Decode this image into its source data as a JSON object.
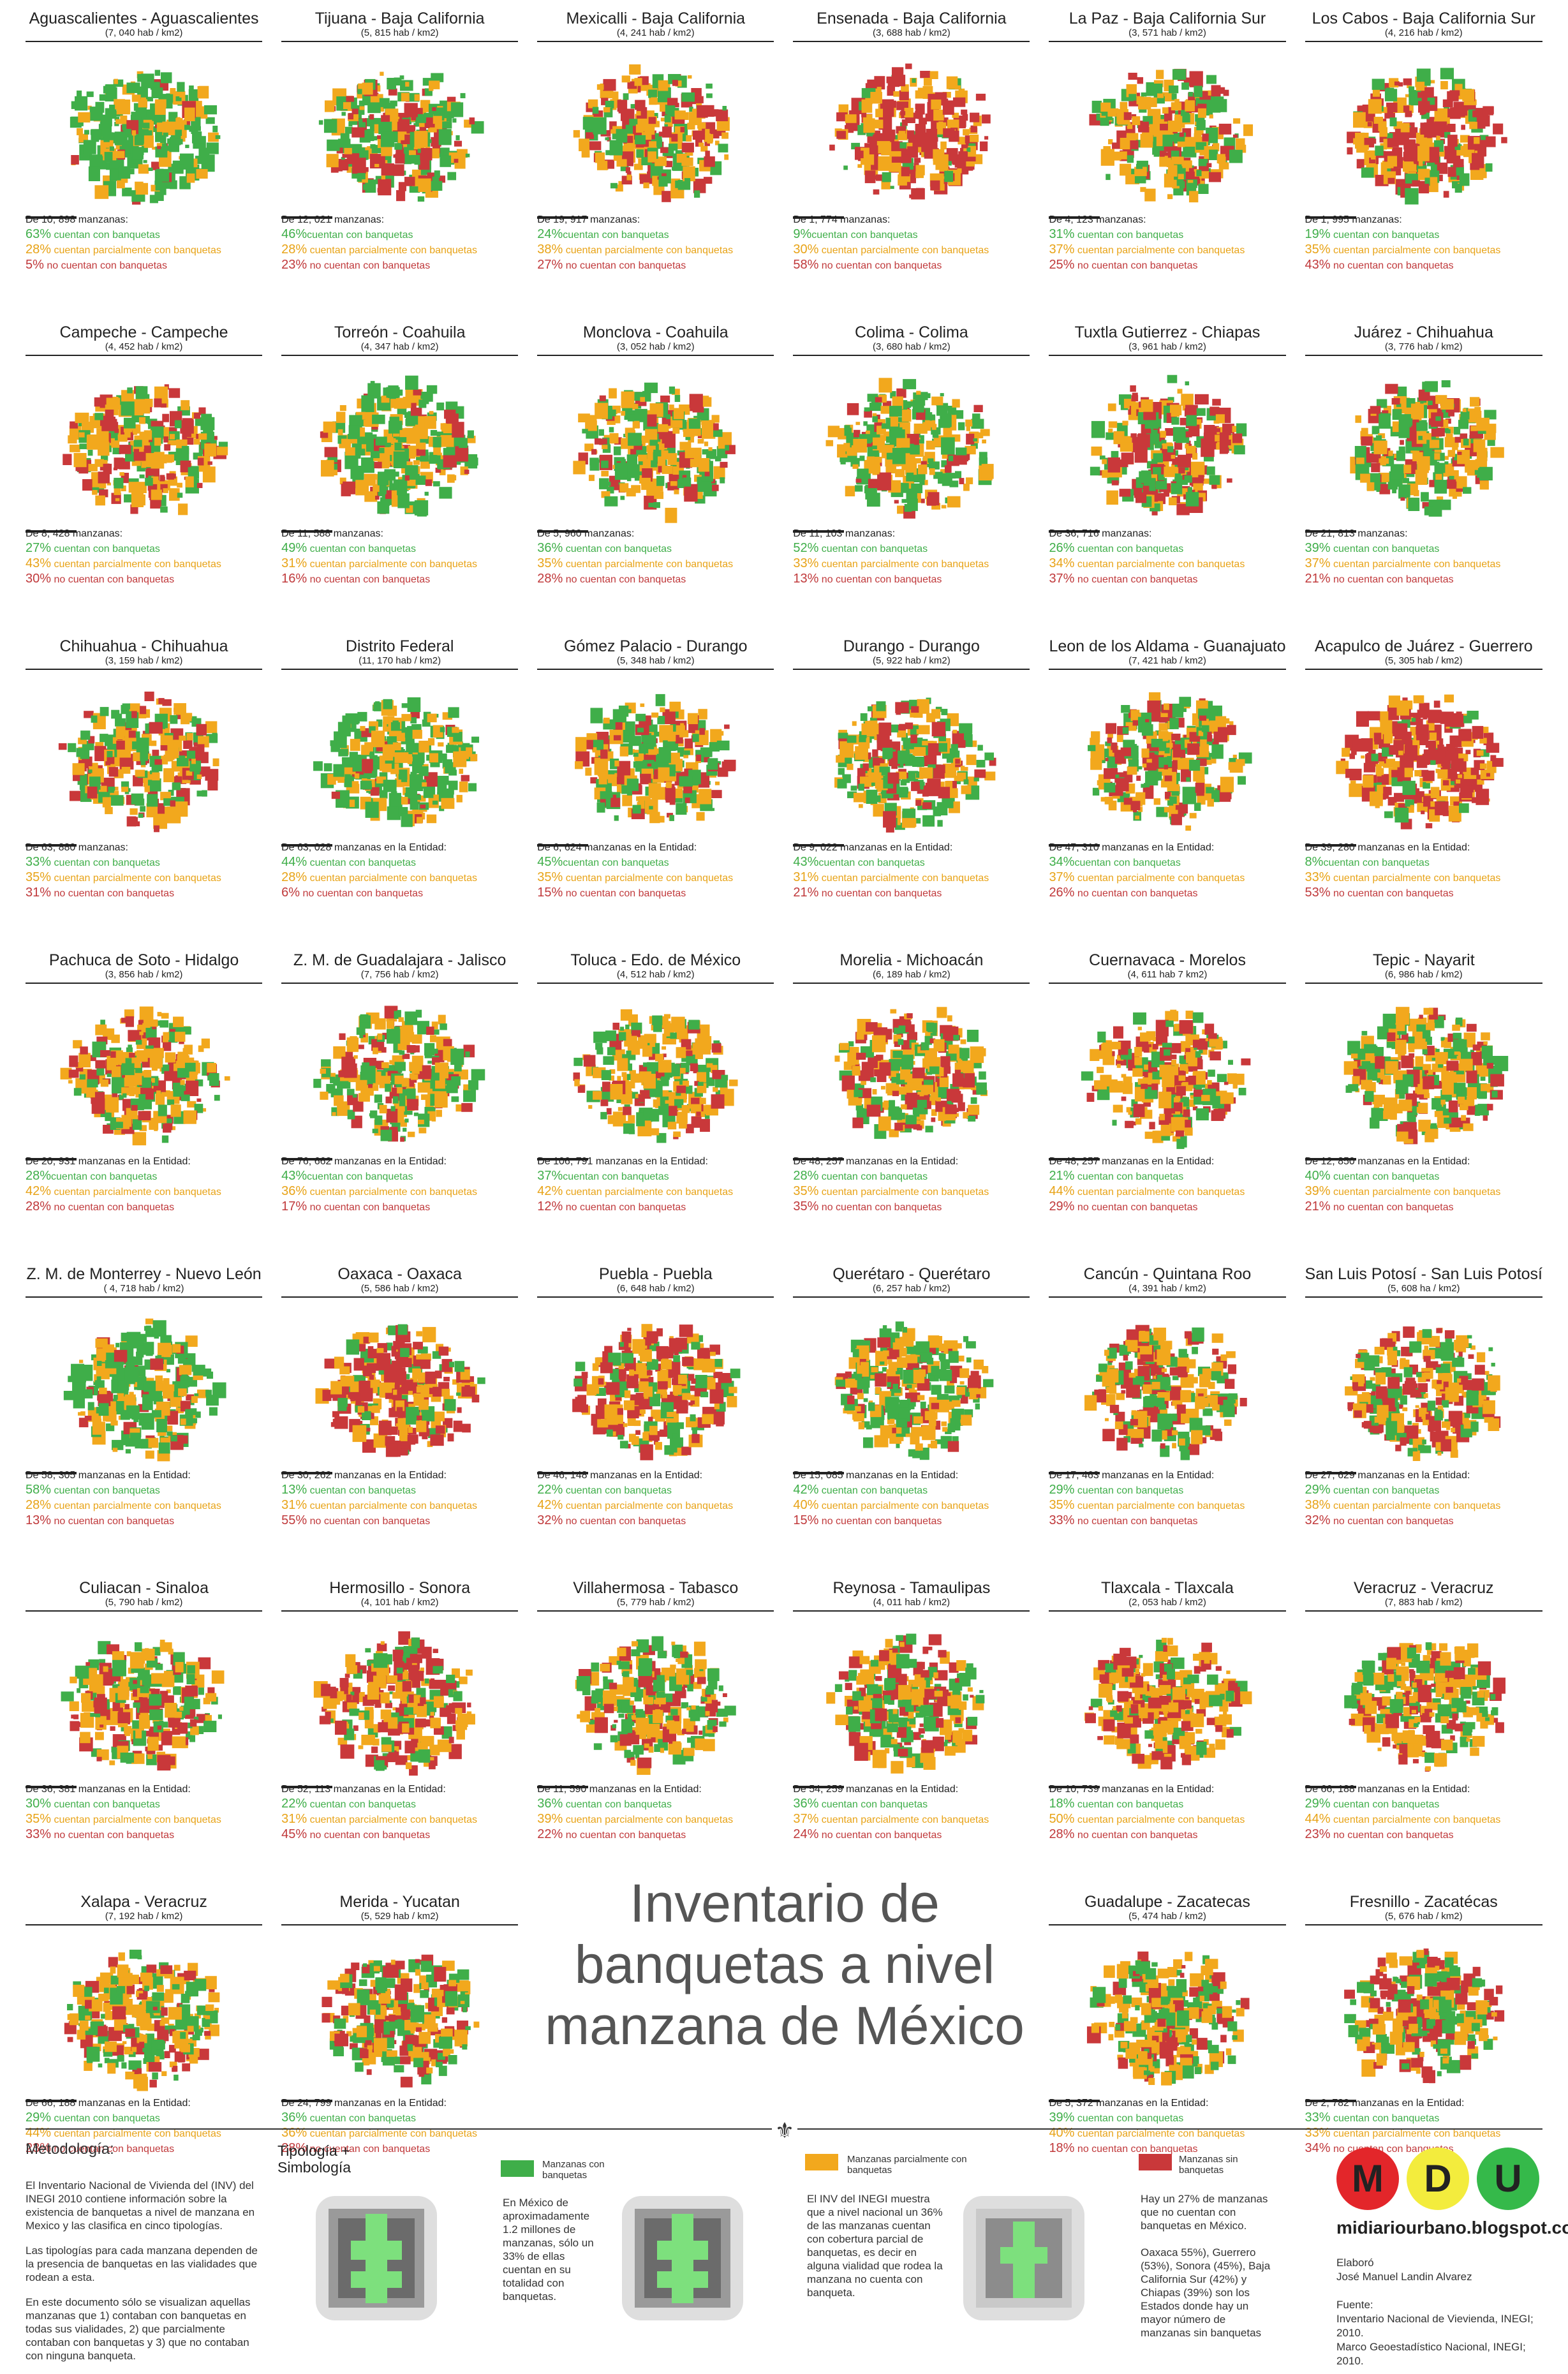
{
  "title": "Inventario de banquetas a nivel manzana de México",
  "colors": {
    "green": "#3fae49",
    "orange": "#f2a81d",
    "red": "#c9383a"
  },
  "cities": [
    {
      "name": "Aguascalientes - Aguascalientes",
      "density": "(7, 040 hab / km2)",
      "total": "De 10, 898 manzanas:",
      "g": "63%",
      "gl": " cuentan con banquetas",
      "o": "28%",
      "ol": " cuentan parcialmente con banquetas",
      "r": "5%",
      "rl": " no cuentan con banquetas"
    },
    {
      "name": "Tijuana - Baja California",
      "density": "(5, 815 hab / km2)",
      "total": "De 12, 021 manzanas:",
      "g": "46%",
      "gl": "cuentan con banquetas",
      "o": "28%",
      "ol": " cuentan parcialmente con banquetas",
      "r": "23%",
      "rl": " no cuentan con banquetas"
    },
    {
      "name": "Mexicalli - Baja California",
      "density": "(4, 241 hab / km2)",
      "total": "De 19, 917 manzanas:",
      "g": "24%",
      "gl": "cuentan con banquetas",
      "o": "38%",
      "ol": " cuentan parcialmente con banquetas",
      "r": "27%",
      "rl": " no cuentan con banquetas"
    },
    {
      "name": "Ensenada - Baja California",
      "density": "(3, 688 hab / km2)",
      "total": "De 1, 774 manzanas:",
      "g": "9%",
      "gl": "cuentan con banquetas",
      "o": "30%",
      "ol": " cuentan parcialmente con banquetas",
      "r": "58%",
      "rl": " no cuentan con banquetas"
    },
    {
      "name": "La Paz - Baja California Sur",
      "density": "(3, 571 hab / km2)",
      "total": "De 4, 123 manzanas:",
      "g": "31%",
      "gl": " cuentan con banquetas",
      "o": "37%",
      "ol": " cuentan parcialmente con banquetas",
      "r": "25%",
      "rl": " no cuentan con banquetas"
    },
    {
      "name": "Los Cabos -  Baja California Sur",
      "density": "(4, 216 hab / km2)",
      "total": "De 1, 995 manzanas:",
      "g": "19%",
      "gl": " cuentan con banquetas",
      "o": "35%",
      "ol": " cuentan parcialmente con banquetas",
      "r": "43%",
      "rl": " no cuentan con banquetas"
    },
    {
      "name": "Campeche - Campeche",
      "density": "(4, 452 hab / km2)",
      "total": "De 8, 428 manzanas:",
      "g": "27%",
      "gl": " cuentan con banquetas",
      "o": "43%",
      "ol": " cuentan parcialmente con banquetas",
      "r": "30%",
      "rl": " no cuentan con banquetas"
    },
    {
      "name": "Torreón - Coahuila",
      "density": "(4, 347 hab / km2)",
      "total": "De 11, 588 manzanas:",
      "g": "49%",
      "gl": " cuentan con banquetas",
      "o": "31%",
      "ol": " cuentan parcialmente con banquetas",
      "r": "16%",
      "rl": " no cuentan con banquetas"
    },
    {
      "name": "Monclova - Coahuila",
      "density": "(3, 052 hab / km2)",
      "total": "De 5, 960 manzanas:",
      "g": "36%",
      "gl": " cuentan con banquetas",
      "o": "35%",
      "ol": " cuentan parcialmente con banquetas",
      "r": "28%",
      "rl": " no cuentan con banquetas"
    },
    {
      "name": "Colima - Colima",
      "density": "(3, 680 hab / km2)",
      "total": "De 11, 103 manzanas:",
      "g": "52%",
      "gl": " cuentan con banquetas",
      "o": "33%",
      "ol": " cuentan parcialmente con banquetas",
      "r": "13%",
      "rl": " no cuentan con banquetas"
    },
    {
      "name": "Tuxtla Gutierrez -  Chiapas",
      "density": "(3, 961 hab / km2)",
      "total": "De 36, 716 manzanas:",
      "g": "26%",
      "gl": " cuentan con banquetas",
      "o": "34%",
      "ol": " cuentan parcialmente con banquetas",
      "r": "37%",
      "rl": " no cuentan con banquetas"
    },
    {
      "name": "Juárez - Chihuahua",
      "density": "(3, 776 hab / km2)",
      "total": "De 21, 813 manzanas:",
      "g": "39%",
      "gl": " cuentan con banquetas",
      "o": "37%",
      "ol": " cuentan parcialmente con banquetas",
      "r": "21%",
      "rl": " no cuentan con banquetas"
    },
    {
      "name": "Chihuahua -  Chihuahua",
      "density": "(3, 159 hab / km2)",
      "total": "De 63, 880 manzanas:",
      "g": "33%",
      "gl": " cuentan con banquetas",
      "o": "35%",
      "ol": " cuentan parcialmente con banquetas",
      "r": "31%",
      "rl": " no cuentan con banquetas"
    },
    {
      "name": "Distrito Federal",
      "density": "(11, 170 hab / km2)",
      "total": "De 63, 028 manzanas en la Entidad:",
      "g": "44%",
      "gl": " cuentan con banquetas",
      "o": "28%",
      "ol": " cuentan parcialmente con banquetas",
      "r": "6%",
      "rl": " no cuentan con banquetas"
    },
    {
      "name": "Gómez Palacio - Durango",
      "density": "(5, 348 hab / km2)",
      "total": "De 6, 624 manzanas en la Entidad:",
      "g": "45%",
      "gl": "cuentan con banquetas",
      "o": "35%",
      "ol": " cuentan parcialmente con banquetas",
      "r": "15%",
      "rl": " no cuentan con banquetas"
    },
    {
      "name": "Durango - Durango",
      "density": "(5, 922 hab / km2)",
      "total": "De 9, 022 manzanas en la Entidad:",
      "g": "43%",
      "gl": "cuentan con banquetas",
      "o": "31%",
      "ol": " cuentan parcialmente con banquetas",
      "r": "21%",
      "rl": " no cuentan con banquetas"
    },
    {
      "name": "Leon de los Aldama -  Guanajuato",
      "density": "(7, 421 hab / km2)",
      "total": "De 47, 310 manzanas en la Entidad:",
      "g": "34%",
      "gl": "cuentan con banquetas",
      "o": "37%",
      "ol": " cuentan parcialmente con banquetas",
      "r": "26%",
      "rl": " no cuentan con banquetas"
    },
    {
      "name": "Acapulco de Juárez -  Guerrero",
      "density": "(5, 305 hab / km2)",
      "total": "De 39, 280 manzanas en la Entidad:",
      "g": "8%",
      "gl": "cuentan con banquetas",
      "o": "33%",
      "ol": " cuentan parcialmente con banquetas",
      "r": "53%",
      "rl": " no cuentan con banquetas"
    },
    {
      "name": "Pachuca de Soto - Hidalgo",
      "density": "(3, 856 hab / km2)",
      "total": "De 20, 931 manzanas en la Entidad:",
      "g": "28%",
      "gl": "cuentan con banquetas",
      "o": "42%",
      "ol": " cuentan parcialmente con banquetas",
      "r": "28%",
      "rl": " no cuentan con banquetas"
    },
    {
      "name": "Z. M. de Guadalajara - Jalisco",
      "density": "(7, 756 hab / km2)",
      "total": "De 76, 662 manzanas en la Entidad:",
      "g": "43%",
      "gl": "cuentan con banquetas",
      "o": "36%",
      "ol": " cuentan parcialmente con banquetas",
      "r": "17%",
      "rl": " no cuentan con banquetas"
    },
    {
      "name": "Toluca - Edo. de México",
      "density": "(4, 512 hab / km2)",
      "total": "De 106, 791 manzanas en la Entidad:",
      "g": "37%",
      "gl": "cuentan con banquetas",
      "o": "42%",
      "ol": " cuentan parcialmente con banquetas",
      "r": "12%",
      "rl": " no cuentan con banquetas"
    },
    {
      "name": "Morelia - Michoacán",
      "density": "(6, 189 hab / km2)",
      "total": "De 48, 257 manzanas en la Entidad:",
      "g": "28%",
      "gl": " cuentan con banquetas",
      "o": "35%",
      "ol": " cuentan parcialmente con banquetas",
      "r": "35%",
      "rl": " no cuentan con banquetas"
    },
    {
      "name": "Cuernavaca -  Morelos",
      "density": "(4, 611 hab 7 km2)",
      "total": "De 48, 257 manzanas en la Entidad:",
      "g": "21%",
      "gl": " cuentan con banquetas",
      "o": "44%",
      "ol": " cuentan parcialmente con banquetas",
      "r": "29%",
      "rl": " no cuentan con banquetas"
    },
    {
      "name": "Tepic -  Nayarit",
      "density": "(6, 986 hab / km2)",
      "total": "De 12, 850 manzanas en la Entidad:",
      "g": "40%",
      "gl": " cuentan con banquetas",
      "o": "39%",
      "ol": " cuentan parcialmente con banquetas",
      "r": "21%",
      "rl": " no cuentan con banquetas"
    },
    {
      "name": "Z. M. de Monterrey -  Nuevo León",
      "density": "( 4, 718 hab / km2)",
      "total": "De 58, 305 manzanas en la Entidad:",
      "g": "58%",
      "gl": " cuentan con banquetas",
      "o": "28%",
      "ol": " cuentan parcialmente con banquetas",
      "r": "13%",
      "rl": " no cuentan con banquetas"
    },
    {
      "name": "Oaxaca - Oaxaca",
      "density": "(5, 586 hab / km2)",
      "total": "De 30, 262 manzanas en la Entidad:",
      "g": "13%",
      "gl": " cuentan con banquetas",
      "o": "31%",
      "ol": " cuentan parcialmente con banquetas",
      "r": "55%",
      "rl": " no cuentan con banquetas"
    },
    {
      "name": "Puebla - Puebla",
      "density": "(6, 648 hab / km2)",
      "total": "De 46, 148 manzanas en la Entidad:",
      "g": "22%",
      "gl": " cuentan con banquetas",
      "o": "42%",
      "ol": " cuentan parcialmente con banquetas",
      "r": "32%",
      "rl": " no cuentan con banquetas"
    },
    {
      "name": "Querétaro - Querétaro",
      "density": "(6, 257 hab / km2)",
      "total": "De 15, 085 manzanas en la Entidad:",
      "g": "42%",
      "gl": " cuentan con banquetas",
      "o": "40%",
      "ol": " cuentan parcialmente con banquetas",
      "r": "15%",
      "rl": " no cuentan con banquetas"
    },
    {
      "name": "Cancún - Quintana Roo",
      "density": "(4, 391 hab / km2)",
      "total": "De 17, 463 manzanas en la Entidad:",
      "g": "29%",
      "gl": " cuentan con banquetas",
      "o": "35%",
      "ol": " cuentan parcialmente con banquetas",
      "r": "33%",
      "rl": " no cuentan con banquetas"
    },
    {
      "name": "San Luis Potosí - San Luis Potosí",
      "density": "(5, 608 ha / km2)",
      "total": "De 27, 629 manzanas en la Entidad:",
      "g": "29%",
      "gl": " cuentan con banquetas",
      "o": "38%",
      "ol": " cuentan parcialmente con banquetas",
      "r": "32%",
      "rl": " no cuentan con banquetas"
    },
    {
      "name": "Culiacan -  Sinaloa",
      "density": "(5, 790 hab / km2)",
      "total": "De 36, 381 manzanas en la Entidad:",
      "g": "30%",
      "gl": " cuentan con banquetas",
      "o": "35%",
      "ol": " cuentan parcialmente con banquetas",
      "r": "33%",
      "rl": " no cuentan con banquetas"
    },
    {
      "name": "Hermosillo -  Sonora",
      "density": "(4, 101 hab / km2)",
      "total": "De 52, 113 manzanas en la Entidad:",
      "g": "22%",
      "gl": " cuentan con banquetas",
      "o": "31%",
      "ol": " cuentan parcialmente con banquetas",
      "r": "45%",
      "rl": " no cuentan con banquetas"
    },
    {
      "name": "Villahermosa - Tabasco",
      "density": "(5, 779 hab / km2)",
      "total": "De 11, 590 manzanas en la Entidad:",
      "g": "36%",
      "gl": " cuentan con banquetas",
      "o": "39%",
      "ol": " cuentan parcialmente con banquetas",
      "r": "22%",
      "rl": " no cuentan con banquetas"
    },
    {
      "name": "Reynosa - Tamaulipas",
      "density": "(4, 011 hab / km2)",
      "total": "De 54, 259 manzanas en la Entidad:",
      "g": "36%",
      "gl": " cuentan con banquetas",
      "o": "37%",
      "ol": " cuentan parcialmente con banquetas",
      "r": "24%",
      "rl": " no cuentan con banquetas"
    },
    {
      "name": "Tlaxcala - Tlaxcala",
      "density": "(2, 053 hab / km2)",
      "total": "De 10, 739 manzanas en la Entidad:",
      "g": "18%",
      "gl": " cuentan con banquetas",
      "o": "50%",
      "ol": " cuentan parcialmente con banquetas",
      "r": "28%",
      "rl": " no cuentan con banquetas"
    },
    {
      "name": "Veracruz - Veracruz",
      "density": "(7, 883 hab / km2)",
      "total": "De 66, 188 manzanas en la Entidad:",
      "g": "29%",
      "gl": " cuentan con banquetas",
      "o": "44%",
      "ol": " cuentan parcialmente con banquetas",
      "r": "23%",
      "rl": " no cuentan con banquetas"
    },
    {
      "name": "Xalapa -  Veracruz",
      "density": "(7, 192 hab / km2)",
      "total": "De 66, 188 manzanas en la Entidad:",
      "g": "29%",
      "gl": " cuentan con banquetas",
      "o": "44%",
      "ol": " cuentan parcialmente con banquetas",
      "r": "23%",
      "rl": " no cuentan con banquetas"
    },
    {
      "name": "Merida - Yucatan",
      "density": "(5, 529 hab / km2)",
      "total": "De 24, 799 manzanas en la Entidad:",
      "g": "36%",
      "gl": " cuentan con banquetas",
      "o": "36%",
      "ol": " cuentan parcialmente con banquetas",
      "r": "28%",
      "rl": " no cuentan con banquetas"
    },
    {
      "name": "",
      "density": "",
      "total": "",
      "g": "",
      "gl": "",
      "o": "",
      "ol": "",
      "r": "",
      "rl": "",
      "blank": true
    },
    {
      "name": "",
      "density": "",
      "total": "",
      "g": "",
      "gl": "",
      "o": "",
      "ol": "",
      "r": "",
      "rl": "",
      "blank": true
    },
    {
      "name": "Guadalupe - Zacatecas",
      "density": "(5, 474 hab / km2)",
      "total": "De 5, 372 manzanas en la Entidad:",
      "g": "39%",
      "gl": " cuentan con banquetas",
      "o": "40%",
      "ol": " cuentan parcialmente con banquetas",
      "r": "18%",
      "rl": " no cuentan con banquetas"
    },
    {
      "name": "Fresnillo - Zacatécas",
      "density": "(5, 676 hab / km2)",
      "total": "De 2, 782 manzanas en la Entidad:",
      "g": "33%",
      "gl": " cuentan con banquetas",
      "o": "33%",
      "ol": " cuentan parcialmente con banquetas",
      "r": "34%",
      "rl": " no cuentan con banquetas"
    }
  ],
  "methodology": {
    "heading": "Metodología:",
    "p1": "El Inventario Nacional de Vivienda del (INV) del INEGI 2010 contiene información sobre la existencia de banquetas a nivel de manzana en Mexico y las clasifica en cinco tipologías.",
    "p2": "Las tipologías para cada manzana dependen de la presencia de banquetas en las vialidades que rodean a esta.",
    "p3": "En este documento sólo se visualizan aquellas manzanas que 1) contaban con  banquetas en todas sus vialidades, 2) que parcialmente contaban con banquetas y 3) que no contaban con ninguna banqueta."
  },
  "tipologia_title": "Tipología + Simbología",
  "legend": [
    {
      "label": "Manzanas con banquetas",
      "text": "En México de aproximadamente 1.2 millones de manzanas, sólo un 33% de ellas cuentan en su totalidad con banquetas."
    },
    {
      "label": "Manzanas parcialmente con banquetas",
      "text": "El INV del INEGI muestra que a nivel nacional un 36% de las manzanas cuentan con cobertura parcial de banquetas, es decir en alguna vialidad que rodea la manzana no cuenta con banqueta."
    },
    {
      "label": "Manzanas sin banquetas",
      "text": "Hay un 27% de manzanas que no cuentan con banquetas en México.\n\nOaxaca 55%), Guerrero (53%), Sonora (45%), Baja California Sur (42%) y Chiapas (39%) son los Estados donde hay un mayor número de manzanas sin banquetas"
    }
  ],
  "logo": {
    "letters": [
      "M",
      "D",
      "U"
    ],
    "site": "midiariourbano.blogspot.com"
  },
  "credits": {
    "elaboro": "Elaboró",
    "author": "José Manuel Landin Alvarez",
    "fuente": "Fuente:",
    "src1": "Inventario Nacional de Vievienda, INEGI; 2010.",
    "src2": "Marco Geoestadístico Nacional, INEGI; 2010."
  }
}
